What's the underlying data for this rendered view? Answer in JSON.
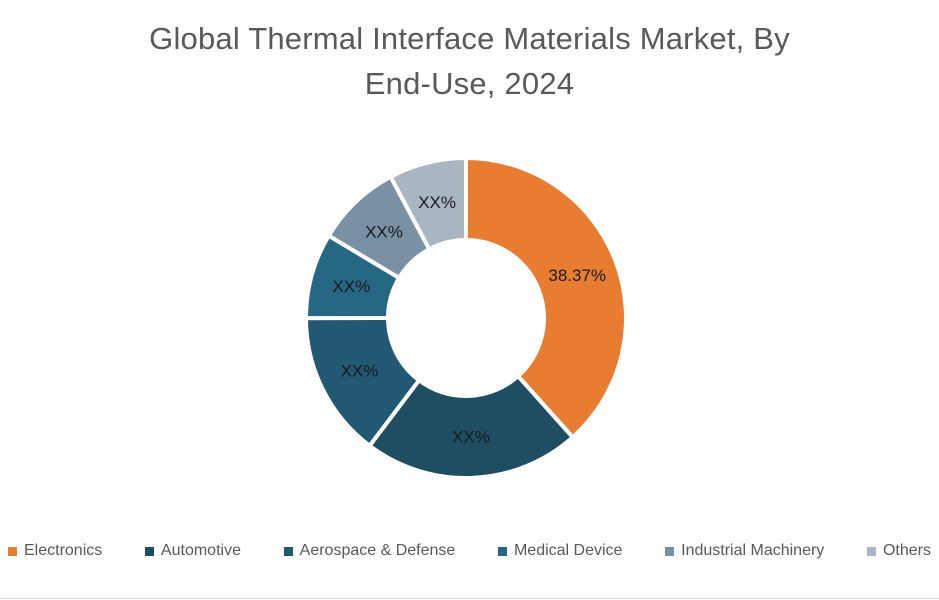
{
  "title": {
    "line1": "Global Thermal Interface Materials Market, By",
    "line2": "End-Use, 2024",
    "full": "Global Thermal Interface Materials Market, By End-Use, 2024",
    "color": "#595959"
  },
  "chart_data": {
    "type": "pie",
    "subtype": "donut",
    "title": "Global Thermal Interface Materials Market, By End-Use, 2024",
    "start_angle_deg": 0,
    "direction": "clockwise",
    "inner_radius_ratio": 0.49,
    "legend_position": "bottom",
    "label_color": "#1a1a1a",
    "segments": [
      {
        "category": "Electronics",
        "value": 38.37,
        "label": "38.37%",
        "color": "#e87d31"
      },
      {
        "category": "Automotive",
        "value": 21.9,
        "label": "XX%",
        "color": "#1f4e63"
      },
      {
        "category": "Aerospace & Defense",
        "value": 14.7,
        "label": "XX%",
        "color": "#215872"
      },
      {
        "category": "Medical Device",
        "value": 8.6,
        "label": "XX%",
        "color": "#266883"
      },
      {
        "category": "Industrial Machinery",
        "value": 8.6,
        "label": "XX%",
        "color": "#7a90a5"
      },
      {
        "category": "Others",
        "value": 7.8,
        "label": "XX%",
        "color": "#a9b5c0"
      }
    ]
  },
  "legend": {
    "text_color": "#595959"
  }
}
